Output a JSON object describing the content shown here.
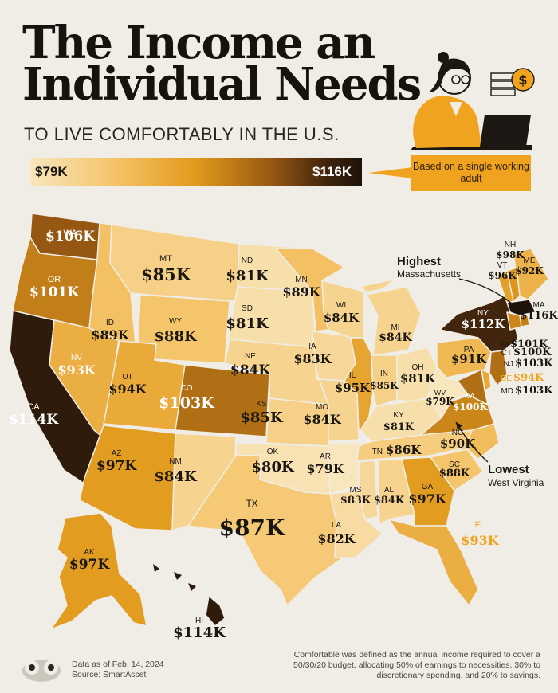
{
  "header": {
    "title_line1": "The Income an",
    "title_line2": "Individual Needs",
    "subtitle": "TO LIVE COMFORTABLY IN THE U.S."
  },
  "legend": {
    "min_label": "$79K",
    "max_label": "$116K",
    "min_value_k": 79,
    "max_value_k": 116,
    "note": "Based on a single working adult"
  },
  "callouts": {
    "highest_title": "Highest",
    "highest_state": "Massachusetts",
    "lowest_title": "Lowest",
    "lowest_state": "West Virginia"
  },
  "colors": {
    "background": "#efede6",
    "accent": "#f0a31e",
    "darkest": "#23160c"
  },
  "states": [
    {
      "abbr": "WA",
      "value": "$106K",
      "k": 106
    },
    {
      "abbr": "OR",
      "value": "$101K",
      "k": 101
    },
    {
      "abbr": "CA",
      "value": "$114K",
      "k": 114
    },
    {
      "abbr": "NV",
      "value": "$93K",
      "k": 93
    },
    {
      "abbr": "ID",
      "value": "$89K",
      "k": 89
    },
    {
      "abbr": "MT",
      "value": "$85K",
      "k": 85
    },
    {
      "abbr": "WY",
      "value": "$88K",
      "k": 88
    },
    {
      "abbr": "UT",
      "value": "$94K",
      "k": 94
    },
    {
      "abbr": "CO",
      "value": "$103K",
      "k": 103
    },
    {
      "abbr": "AZ",
      "value": "$97K",
      "k": 97
    },
    {
      "abbr": "NM",
      "value": "$84K",
      "k": 84
    },
    {
      "abbr": "ND",
      "value": "$81K",
      "k": 81
    },
    {
      "abbr": "SD",
      "value": "$81K",
      "k": 81
    },
    {
      "abbr": "NE",
      "value": "$84K",
      "k": 84
    },
    {
      "abbr": "KS",
      "value": "$85K",
      "k": 85
    },
    {
      "abbr": "OK",
      "value": "$80K",
      "k": 80
    },
    {
      "abbr": "TX",
      "value": "$87K",
      "k": 87
    },
    {
      "abbr": "MN",
      "value": "$89K",
      "k": 89
    },
    {
      "abbr": "IA",
      "value": "$83K",
      "k": 83
    },
    {
      "abbr": "MO",
      "value": "$84K",
      "k": 84
    },
    {
      "abbr": "AR",
      "value": "$79K",
      "k": 79
    },
    {
      "abbr": "LA",
      "value": "$82K",
      "k": 82
    },
    {
      "abbr": "WI",
      "value": "$84K",
      "k": 84
    },
    {
      "abbr": "IL",
      "value": "$95K",
      "k": 95
    },
    {
      "abbr": "MI",
      "value": "$84K",
      "k": 84
    },
    {
      "abbr": "IN",
      "value": "$85K",
      "k": 85
    },
    {
      "abbr": "OH",
      "value": "$81K",
      "k": 81
    },
    {
      "abbr": "KY",
      "value": "$81K",
      "k": 81
    },
    {
      "abbr": "TN",
      "value": "$86K",
      "k": 86
    },
    {
      "abbr": "MS",
      "value": "$83K",
      "k": 83
    },
    {
      "abbr": "AL",
      "value": "$84K",
      "k": 84
    },
    {
      "abbr": "GA",
      "value": "$97K",
      "k": 97
    },
    {
      "abbr": "FL",
      "value": "$93K",
      "k": 93
    },
    {
      "abbr": "SC",
      "value": "$88K",
      "k": 88
    },
    {
      "abbr": "NC",
      "value": "$90K",
      "k": 90
    },
    {
      "abbr": "VA",
      "value": "$100K",
      "k": 100
    },
    {
      "abbr": "WV",
      "value": "$79K",
      "k": 79
    },
    {
      "abbr": "PA",
      "value": "$91K",
      "k": 91
    },
    {
      "abbr": "NY",
      "value": "$112K",
      "k": 112
    },
    {
      "abbr": "ME",
      "value": "$92K",
      "k": 92
    },
    {
      "abbr": "NH",
      "value": "$98K",
      "k": 98
    },
    {
      "abbr": "VT",
      "value": "$96K",
      "k": 96
    },
    {
      "abbr": "MA",
      "value": "$116K",
      "k": 116
    },
    {
      "abbr": "RI",
      "value": "$101K",
      "k": 101
    },
    {
      "abbr": "CT",
      "value": "$100K",
      "k": 100
    },
    {
      "abbr": "NJ",
      "value": "$103K",
      "k": 103
    },
    {
      "abbr": "DE",
      "value": "$94K",
      "k": 94
    },
    {
      "abbr": "MD",
      "value": "$103K",
      "k": 103
    },
    {
      "abbr": "AK",
      "value": "$97K",
      "k": 97
    },
    {
      "abbr": "HI",
      "value": "$114K",
      "k": 114
    }
  ],
  "footer": {
    "date_line": "Data as of Feb. 14, 2024",
    "source_line": "Source: SmartAsset",
    "methodology": "Comfortable was defined as the annual income required to cover a 50/30/20 budget, allocating 50% of earnings to necessities, 30% to discretionary spending, and 20% to savings."
  }
}
